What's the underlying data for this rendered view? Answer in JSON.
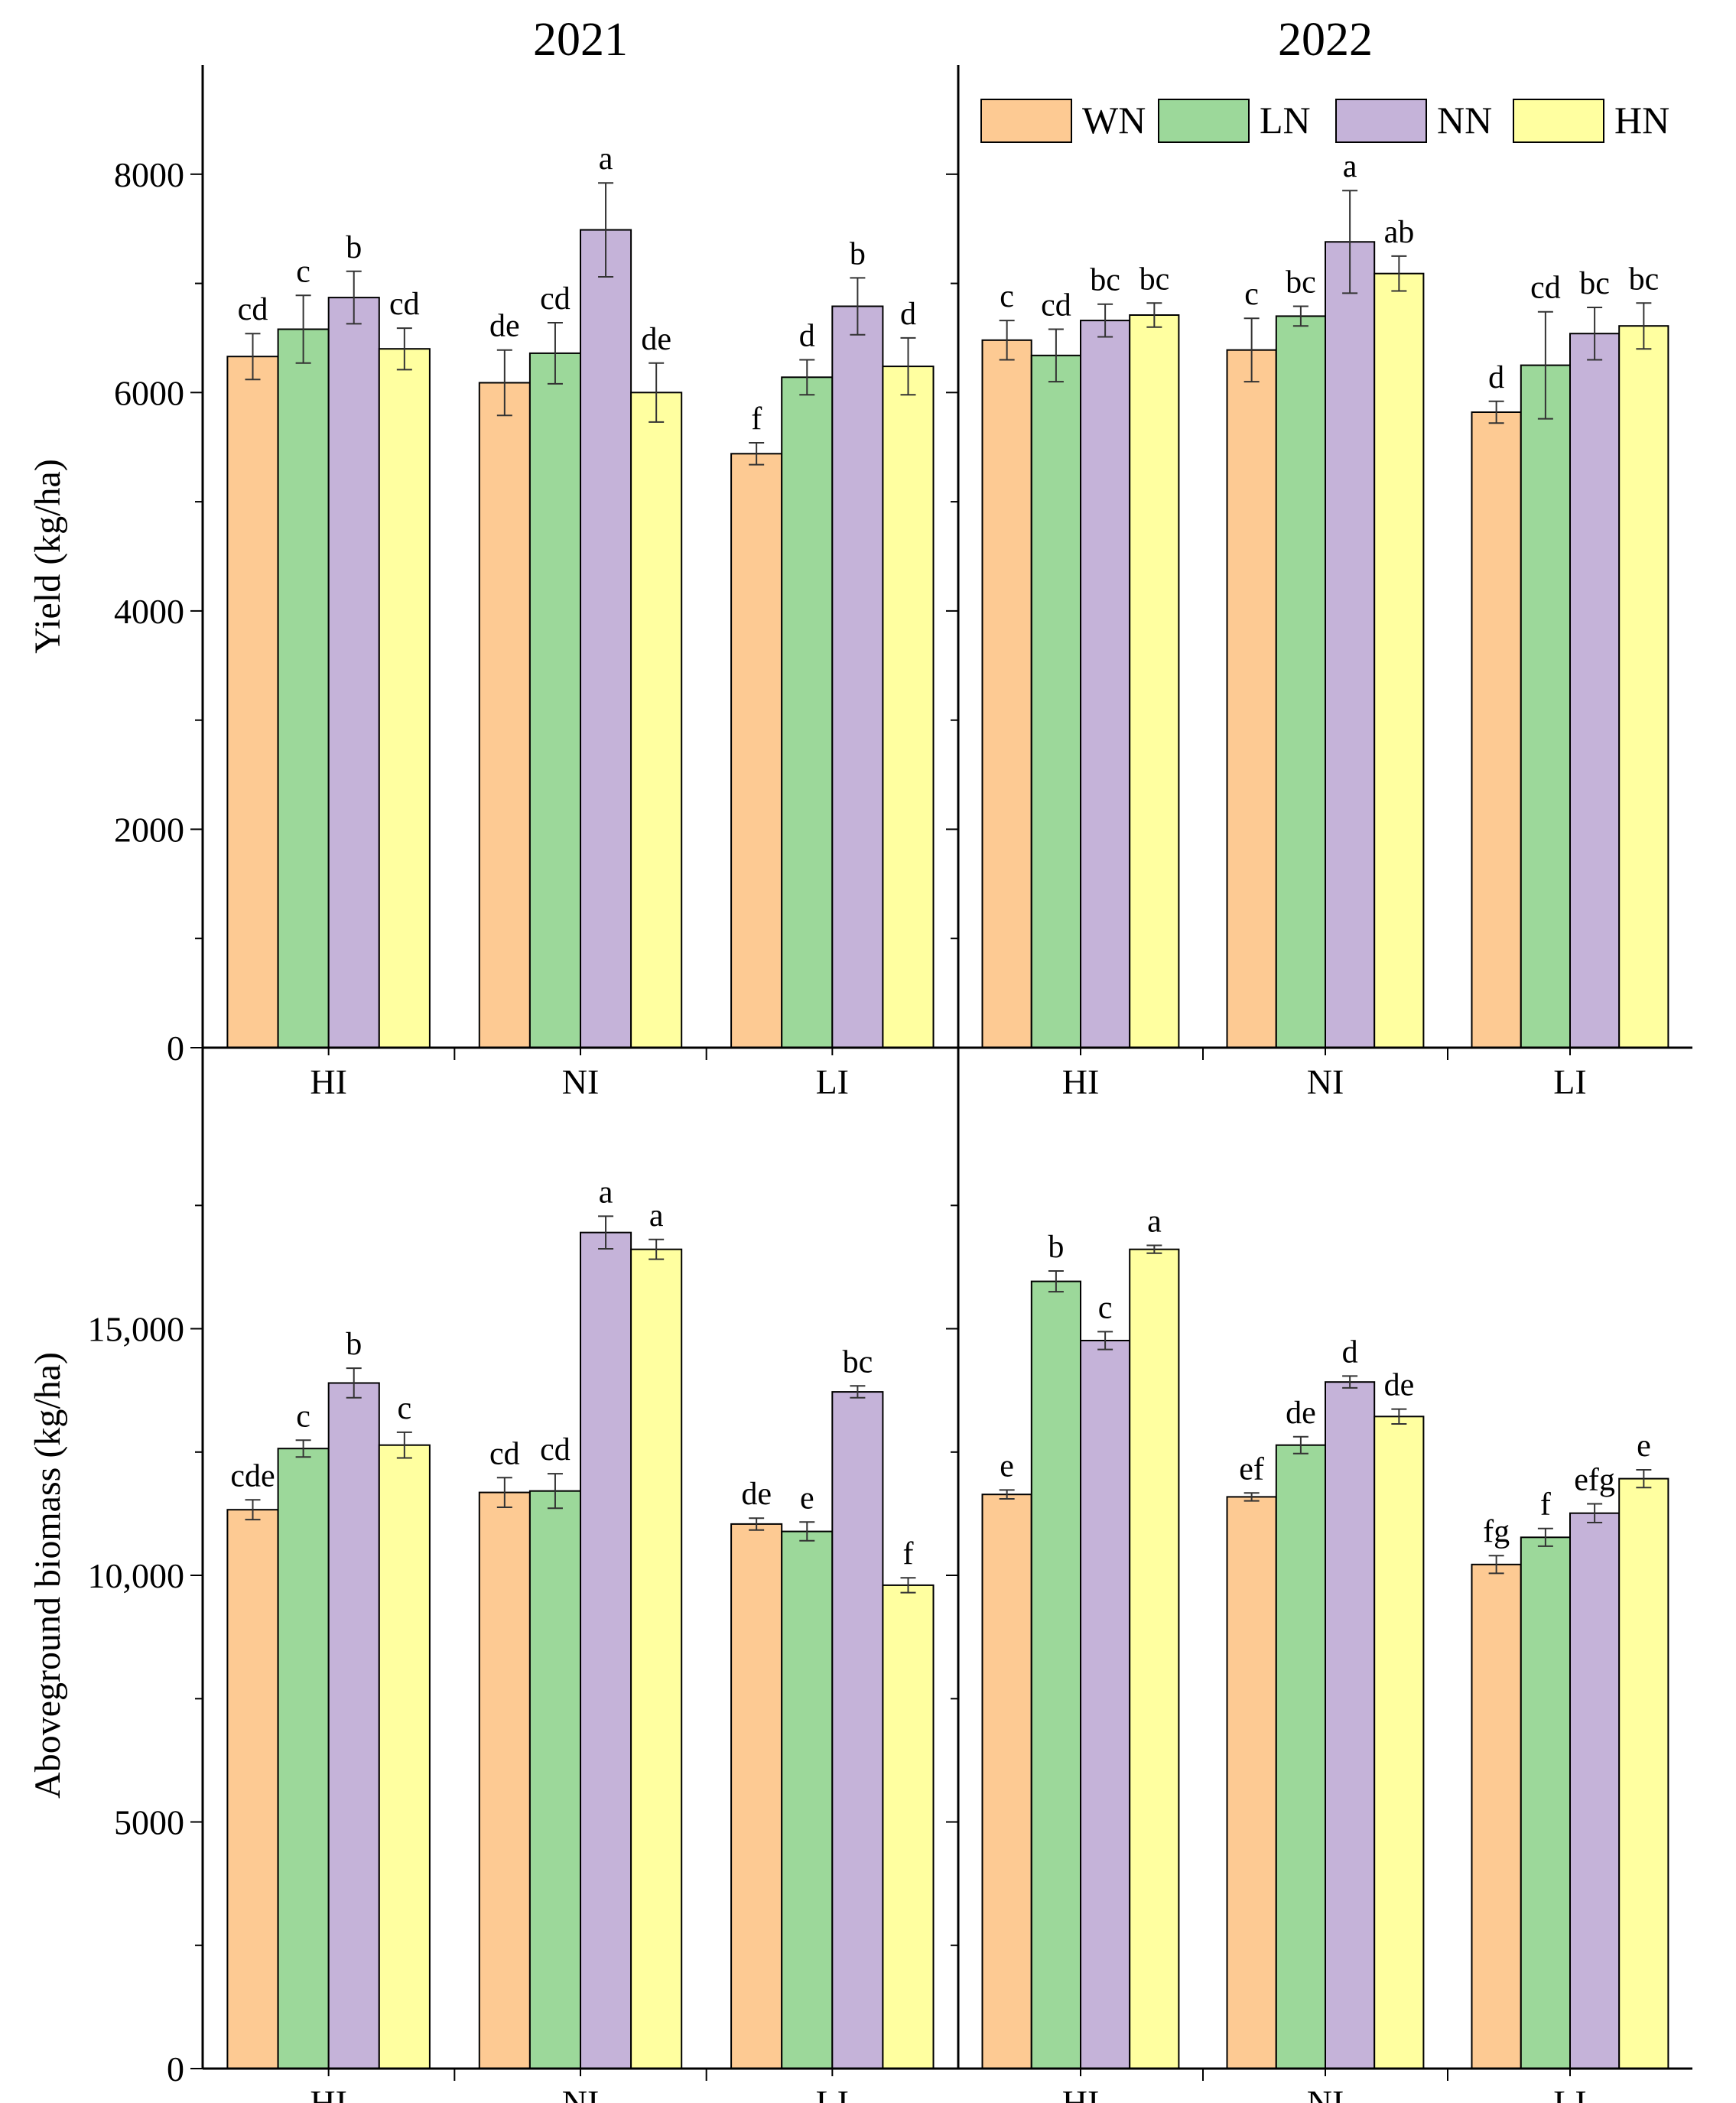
{
  "legend": [
    {
      "key": "WN",
      "color": "#FDCA93"
    },
    {
      "key": "LN",
      "color": "#9CD89A"
    },
    {
      "key": "NN",
      "color": "#C5B3D9"
    },
    {
      "key": "HN",
      "color": "#FFFFA0"
    }
  ],
  "chart_data": [
    {
      "type": "bar",
      "panel": "top-left",
      "title": "2021",
      "xlabel": "",
      "ylabel": "Yield (kg/ha)",
      "ylim": [
        0,
        9000
      ],
      "yticks": [
        0,
        2000,
        4000,
        6000,
        8000
      ],
      "ytick_labels": [
        "0",
        "2000",
        "4000",
        "6000",
        "8000"
      ],
      "categories": [
        "HI",
        "NI",
        "LI"
      ],
      "series": [
        {
          "name": "WN",
          "values": [
            6330,
            6090,
            5440
          ],
          "errors": [
            210,
            300,
            100
          ],
          "letters": [
            "cd",
            "de",
            "f"
          ]
        },
        {
          "name": "LN",
          "values": [
            6580,
            6360,
            6140
          ],
          "errors": [
            310,
            280,
            160
          ],
          "letters": [
            "c",
            "cd",
            "d"
          ]
        },
        {
          "name": "NN",
          "values": [
            6870,
            7490,
            6790
          ],
          "errors": [
            240,
            430,
            260
          ],
          "letters": [
            "b",
            "a",
            "b"
          ]
        },
        {
          "name": "HN",
          "values": [
            6400,
            6000,
            6240
          ],
          "errors": [
            190,
            270,
            260
          ],
          "letters": [
            "cd",
            "de",
            "d"
          ]
        }
      ]
    },
    {
      "type": "bar",
      "panel": "top-right",
      "title": "2022",
      "xlabel": "",
      "ylabel": "",
      "ylim": [
        0,
        9000
      ],
      "yticks": [
        0,
        2000,
        4000,
        6000,
        8000
      ],
      "ytick_labels": [],
      "categories": [
        "HI",
        "NI",
        "LI"
      ],
      "series": [
        {
          "name": "WN",
          "values": [
            6480,
            6390,
            5820
          ],
          "errors": [
            180,
            290,
            100
          ],
          "letters": [
            "c",
            "c",
            "d"
          ]
        },
        {
          "name": "LN",
          "values": [
            6340,
            6700,
            6250
          ],
          "errors": [
            240,
            90,
            490
          ],
          "letters": [
            "cd",
            "bc",
            "cd"
          ]
        },
        {
          "name": "NN",
          "values": [
            6660,
            7380,
            6540
          ],
          "errors": [
            150,
            470,
            240
          ],
          "letters": [
            "bc",
            "a",
            "bc"
          ]
        },
        {
          "name": "HN",
          "values": [
            6710,
            7090,
            6610
          ],
          "errors": [
            110,
            160,
            210
          ],
          "letters": [
            "bc",
            "ab",
            "bc"
          ]
        }
      ]
    },
    {
      "type": "bar",
      "panel": "bottom-left",
      "title": "",
      "xlabel": "",
      "ylabel": "Aboveground biomass (kg/ha)",
      "ylim": [
        0,
        20000
      ],
      "yticks": [
        0,
        5000,
        10000,
        15000
      ],
      "ytick_labels": [
        "0",
        "5000",
        "10,000",
        "15,000"
      ],
      "categories": [
        "HI",
        "NI",
        "LI"
      ],
      "series": [
        {
          "name": "WN",
          "values": [
            11330,
            11680,
            11040
          ],
          "errors": [
            200,
            300,
            120
          ],
          "letters": [
            "cde",
            "cd",
            "de"
          ]
        },
        {
          "name": "LN",
          "values": [
            12570,
            11710,
            10890
          ],
          "errors": [
            170,
            350,
            190
          ],
          "letters": [
            "c",
            "cd",
            "e"
          ]
        },
        {
          "name": "NN",
          "values": [
            13900,
            16950,
            13720
          ],
          "errors": [
            300,
            330,
            120
          ],
          "letters": [
            "b",
            "a",
            "bc"
          ]
        },
        {
          "name": "HN",
          "values": [
            12640,
            16610,
            9800
          ],
          "errors": [
            260,
            200,
            150
          ],
          "letters": [
            "c",
            "a",
            "f"
          ]
        }
      ]
    },
    {
      "type": "bar",
      "panel": "bottom-right",
      "title": "",
      "xlabel": "",
      "ylabel": "",
      "ylim": [
        0,
        20000
      ],
      "yticks": [
        0,
        5000,
        10000,
        15000
      ],
      "ytick_labels": [],
      "categories": [
        "HI",
        "NI",
        "LI"
      ],
      "series": [
        {
          "name": "WN",
          "values": [
            11640,
            11590,
            10220
          ],
          "errors": [
            90,
            80,
            180
          ],
          "letters": [
            "e",
            "ef",
            "fg"
          ]
        },
        {
          "name": "LN",
          "values": [
            15960,
            12640,
            10770
          ],
          "errors": [
            210,
            170,
            180
          ],
          "letters": [
            "b",
            "de",
            "f"
          ]
        },
        {
          "name": "NN",
          "values": [
            14760,
            13920,
            11260
          ],
          "errors": [
            180,
            120,
            190
          ],
          "letters": [
            "c",
            "d",
            "efg"
          ]
        },
        {
          "name": "HN",
          "values": [
            16610,
            13220,
            11960
          ],
          "errors": [
            80,
            150,
            180
          ],
          "letters": [
            "a",
            "de",
            "e"
          ]
        }
      ]
    }
  ]
}
